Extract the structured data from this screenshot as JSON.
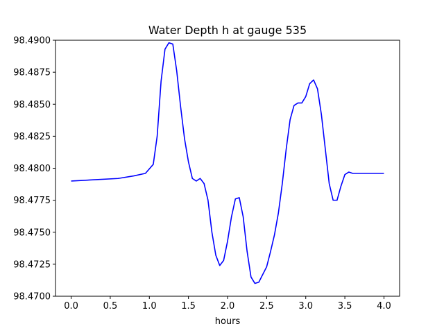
{
  "chart_data": {
    "type": "line",
    "title": "Water Depth h at gauge 535",
    "xlabel": "hours",
    "ylabel": "",
    "xlim": [
      -0.2,
      4.2
    ],
    "ylim": [
      98.47,
      98.49
    ],
    "x_ticks": [
      0.0,
      0.5,
      1.0,
      1.5,
      2.0,
      2.5,
      3.0,
      3.5,
      4.0
    ],
    "x_tick_labels": [
      "0.0",
      "0.5",
      "1.0",
      "1.5",
      "2.0",
      "2.5",
      "3.0",
      "3.5",
      "4.0"
    ],
    "y_ticks": [
      98.47,
      98.4725,
      98.475,
      98.4775,
      98.48,
      98.4825,
      98.485,
      98.4875,
      98.49
    ],
    "y_tick_labels": [
      "98.4700",
      "98.4725",
      "98.4750",
      "98.4775",
      "98.4800",
      "98.4825",
      "98.4850",
      "98.4875",
      "98.4900"
    ],
    "grid": false,
    "series": [
      {
        "color": "#0000ff",
        "x": [
          0.0,
          0.3,
          0.6,
          0.8,
          0.95,
          1.05,
          1.1,
          1.15,
          1.2,
          1.25,
          1.3,
          1.35,
          1.4,
          1.45,
          1.5,
          1.55,
          1.6,
          1.65,
          1.7,
          1.75,
          1.8,
          1.85,
          1.9,
          1.95,
          2.0,
          2.05,
          2.1,
          2.15,
          2.2,
          2.25,
          2.3,
          2.35,
          2.4,
          2.45,
          2.5,
          2.55,
          2.6,
          2.65,
          2.7,
          2.75,
          2.8,
          2.85,
          2.9,
          2.95,
          3.0,
          3.05,
          3.1,
          3.15,
          3.2,
          3.25,
          3.3,
          3.35,
          3.4,
          3.45,
          3.5,
          3.55,
          3.6,
          3.65,
          3.7,
          3.75,
          3.8,
          3.85,
          3.9,
          3.95,
          4.0
        ],
        "y": [
          98.479,
          98.4791,
          98.4792,
          98.4794,
          98.4796,
          98.4803,
          98.4825,
          98.4868,
          98.4893,
          98.4898,
          98.4897,
          98.4876,
          98.4848,
          98.4823,
          98.4805,
          98.4792,
          98.479,
          98.4792,
          98.4788,
          98.4775,
          98.475,
          98.4732,
          98.4724,
          98.4728,
          98.4743,
          98.4762,
          98.4776,
          98.4777,
          98.4762,
          98.4735,
          98.4715,
          98.471,
          98.4711,
          98.4717,
          98.4723,
          98.4735,
          98.4748,
          98.4765,
          98.4788,
          98.4815,
          98.4838,
          98.4849,
          98.4851,
          98.4851,
          98.4856,
          98.4866,
          98.4869,
          98.4862,
          98.4842,
          98.4815,
          98.4788,
          98.4775,
          98.4775,
          98.4786,
          98.4795,
          98.4797,
          98.4796,
          98.4796,
          98.4796,
          98.4796,
          98.4796,
          98.4796,
          98.4796,
          98.4796,
          98.4796
        ]
      }
    ]
  }
}
